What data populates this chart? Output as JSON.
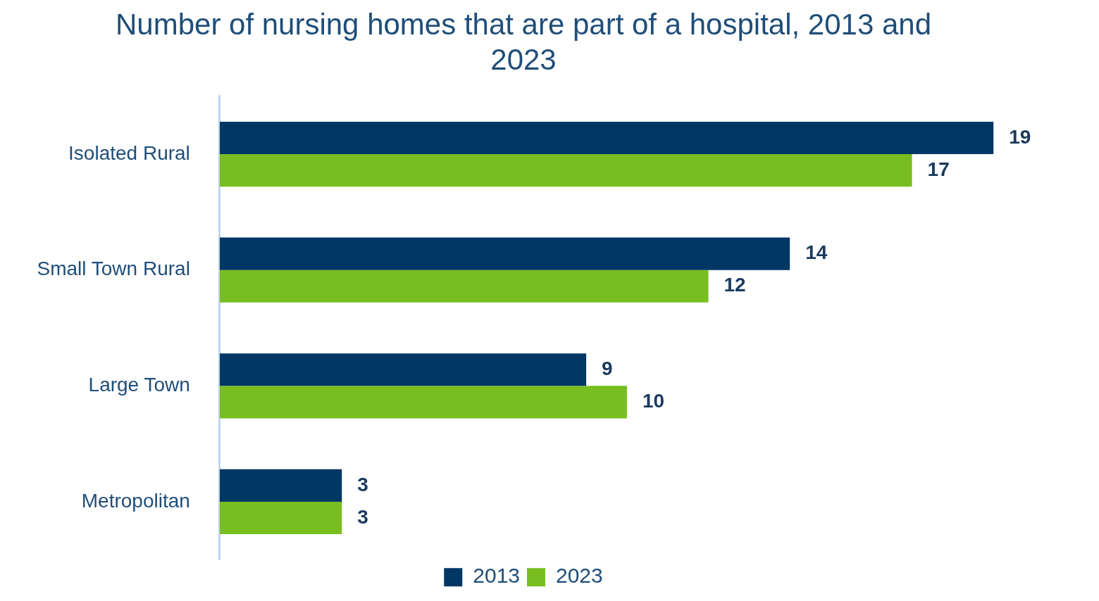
{
  "chart_data": {
    "type": "bar",
    "orientation": "horizontal",
    "title": "Number of nursing homes that are part of a hospital, 2013 and 2023",
    "categories": [
      "Isolated Rural",
      "Small Town Rural",
      "Large Town",
      "Metropolitan"
    ],
    "series": [
      {
        "name": "2013",
        "color": "#003764",
        "values": [
          19,
          14,
          9,
          3
        ]
      },
      {
        "name": "2023",
        "color": "#78be20",
        "values": [
          17,
          12,
          10,
          3
        ]
      }
    ],
    "data_labels": true,
    "legend": "bottom",
    "tick_labels": "y"
  }
}
